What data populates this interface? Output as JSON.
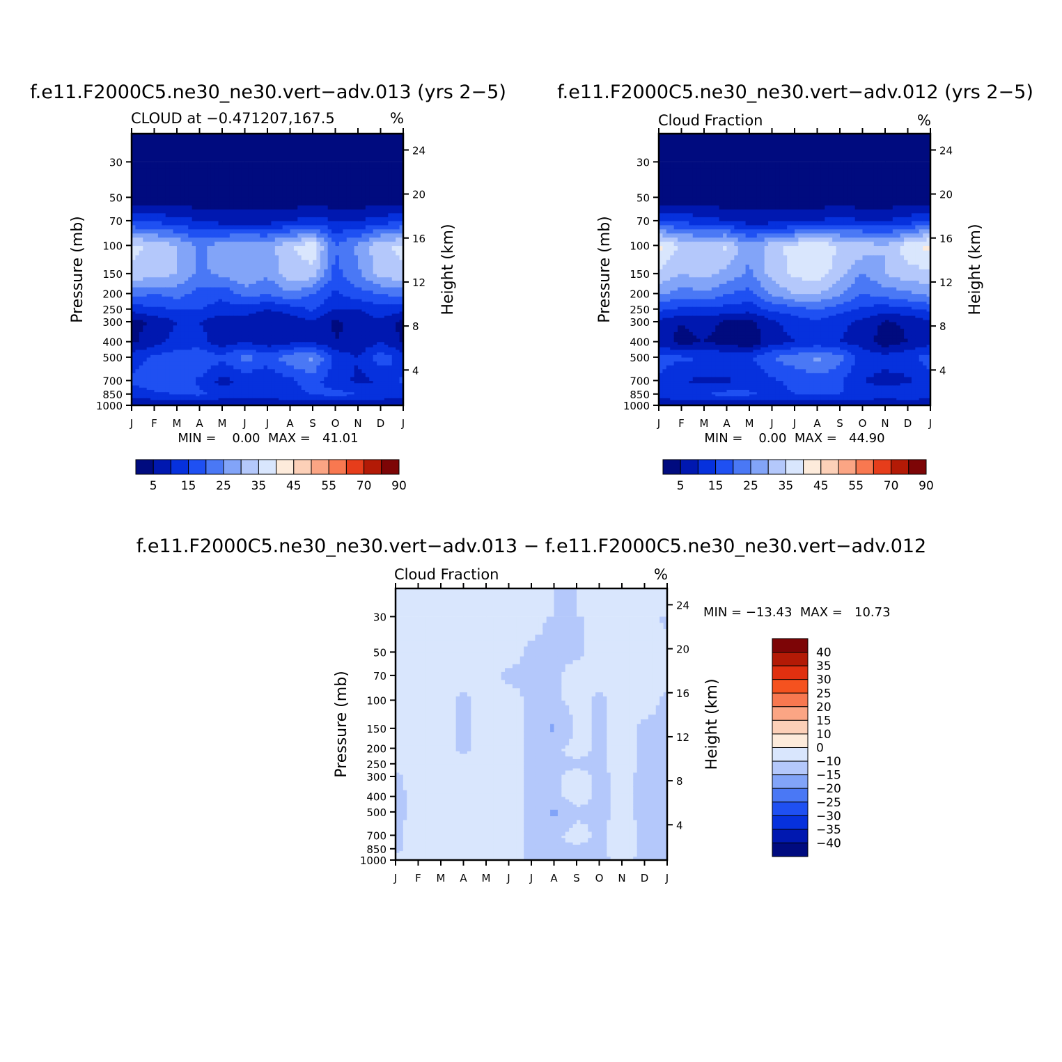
{
  "colors": {
    "seq_palette": [
      "#000b7f",
      "#0018b0",
      "#0631dd",
      "#1f50f2",
      "#4a78f5",
      "#82a4f8",
      "#b4c8fb",
      "#d9e6fd",
      "#fdebdb",
      "#fcd0b8",
      "#fba584",
      "#f87850",
      "#e63d1b",
      "#b31a06",
      "#7d0506"
    ],
    "diff_palette": [
      "#000b7f",
      "#0018b0",
      "#0631dd",
      "#1f50f2",
      "#4a78f5",
      "#82a4f8",
      "#b4c8fb",
      "#d9e6fd",
      "#fdebdb",
      "#fcd0b8",
      "#fba584",
      "#f87850",
      "#f5521f",
      "#e03010",
      "#b31a06",
      "#7d0506"
    ]
  },
  "chart_data": [
    {
      "type": "heatmap",
      "title": "f.e11.F2000C5.ne30_ne30.vert−adv.013 (yrs 2−5)",
      "subtitle_left": "CLOUD at −0.471207,167.5",
      "subtitle_right": "%",
      "ylabel": "Pressure (mb)",
      "y2label": "Height (km)",
      "months": [
        "J",
        "F",
        "M",
        "A",
        "M",
        "J",
        "J",
        "A",
        "S",
        "O",
        "N",
        "D",
        "J"
      ],
      "pressure_ticks": [
        "30",
        "50",
        "70",
        "100",
        "150",
        "200",
        "250",
        "300",
        "400",
        "500",
        "700",
        "850",
        "1000"
      ],
      "height_ticks": [
        "24",
        "20",
        "16",
        "12",
        "8",
        "4"
      ],
      "stats": "MIN =    0.00  MAX =   41.01",
      "colorbar_labels": [
        "5",
        "15",
        "25",
        "35",
        "45",
        "55",
        "70",
        "90"
      ],
      "contour_levels": [
        0,
        5,
        10,
        15,
        20,
        25,
        30,
        35,
        40,
        45,
        50,
        55,
        60,
        70,
        80,
        90
      ],
      "levels_pressure": [
        1000,
        850,
        700,
        500,
        400,
        300,
        250,
        200,
        150,
        100,
        70,
        50,
        30
      ],
      "values": [
        [
          5,
          5,
          5,
          5,
          5,
          5,
          5,
          5,
          5,
          5,
          5,
          5,
          5
        ],
        [
          12,
          14,
          15,
          16,
          13,
          12,
          13,
          14,
          15,
          17,
          15,
          14,
          12
        ],
        [
          16,
          18,
          19,
          14,
          8,
          12,
          10,
          14,
          17,
          12,
          9,
          10,
          16
        ],
        [
          13,
          16,
          18,
          20,
          16,
          22,
          18,
          23,
          26,
          14,
          10,
          18,
          13
        ],
        [
          4,
          8,
          12,
          12,
          7,
          10,
          7,
          9,
          10,
          5,
          6,
          10,
          4
        ],
        [
          3,
          6,
          10,
          10,
          6,
          8,
          5,
          7,
          9,
          4,
          7,
          9,
          3
        ],
        [
          12,
          14,
          15,
          15,
          13,
          12,
          10,
          12,
          16,
          10,
          10,
          13,
          12
        ],
        [
          22,
          20,
          22,
          18,
          16,
          22,
          20,
          24,
          20,
          14,
          18,
          20,
          22
        ],
        [
          34,
          32,
          30,
          24,
          26,
          30,
          26,
          33,
          33,
          18,
          24,
          32,
          34
        ],
        [
          36,
          34,
          30,
          24,
          28,
          30,
          28,
          34,
          39,
          20,
          26,
          34,
          36
        ],
        [
          15,
          14,
          12,
          10,
          8,
          8,
          8,
          10,
          12,
          10,
          10,
          12,
          15
        ],
        [
          1,
          1,
          1,
          1,
          1,
          1,
          1,
          1,
          1,
          1,
          1,
          1,
          1
        ],
        [
          0,
          0,
          0,
          0,
          0,
          0,
          0,
          0,
          0,
          0,
          0,
          0,
          0
        ]
      ]
    },
    {
      "type": "heatmap",
      "title": "f.e11.F2000C5.ne30_ne30.vert−adv.012 (yrs 2−5)",
      "subtitle_left": "Cloud Fraction",
      "subtitle_right": "%",
      "ylabel": "Pressure (mb)",
      "y2label": "Height (km)",
      "months": [
        "J",
        "F",
        "M",
        "A",
        "M",
        "J",
        "J",
        "A",
        "S",
        "O",
        "N",
        "D",
        "J"
      ],
      "pressure_ticks": [
        "30",
        "50",
        "70",
        "100",
        "150",
        "200",
        "250",
        "300",
        "400",
        "500",
        "700",
        "850",
        "1000"
      ],
      "height_ticks": [
        "24",
        "20",
        "16",
        "12",
        "8",
        "4"
      ],
      "stats": "MIN =    0.00  MAX =   44.90",
      "colorbar_labels": [
        "5",
        "15",
        "25",
        "35",
        "45",
        "55",
        "70",
        "90"
      ],
      "contour_levels": [
        0,
        5,
        10,
        15,
        20,
        25,
        30,
        35,
        40,
        45,
        50,
        55,
        60,
        70,
        80,
        90
      ],
      "levels_pressure": [
        1000,
        850,
        700,
        500,
        400,
        300,
        250,
        200,
        150,
        100,
        70,
        50,
        30
      ],
      "values": [
        [
          5,
          5,
          5,
          5,
          5,
          5,
          5,
          5,
          5,
          5,
          5,
          5,
          5
        ],
        [
          13,
          14,
          15,
          17,
          16,
          14,
          15,
          15,
          15,
          14,
          13,
          14,
          13
        ],
        [
          14,
          10,
          9,
          9,
          12,
          14,
          16,
          18,
          16,
          10,
          8,
          9,
          14
        ],
        [
          17,
          16,
          15,
          14,
          14,
          20,
          23,
          26,
          22,
          13,
          12,
          14,
          17
        ],
        [
          8,
          3,
          5,
          3,
          1,
          8,
          10,
          12,
          10,
          8,
          2,
          5,
          8
        ],
        [
          9,
          5,
          7,
          4,
          3,
          9,
          12,
          14,
          11,
          9,
          4,
          6,
          9
        ],
        [
          16,
          14,
          14,
          13,
          12,
          16,
          18,
          20,
          17,
          14,
          12,
          14,
          16
        ],
        [
          26,
          22,
          24,
          20,
          18,
          26,
          30,
          30,
          26,
          20,
          22,
          24,
          26
        ],
        [
          34,
          30,
          32,
          28,
          24,
          32,
          36,
          38,
          32,
          24,
          30,
          33,
          34
        ],
        [
          42,
          34,
          33,
          36,
          26,
          33,
          37,
          40,
          34,
          34,
          30,
          38,
          42
        ],
        [
          16,
          14,
          12,
          10,
          8,
          8,
          8,
          10,
          12,
          10,
          10,
          12,
          16
        ],
        [
          1,
          1,
          1,
          1,
          1,
          1,
          1,
          1,
          1,
          1,
          1,
          1,
          1
        ],
        [
          0,
          0,
          0,
          0,
          0,
          0,
          0,
          0,
          0,
          0,
          0,
          0,
          0
        ]
      ]
    },
    {
      "type": "heatmap",
      "title": "f.e11.F2000C5.ne30_ne30.vert−adv.013 − f.e11.F2000C5.ne30_ne30.vert−adv.012",
      "subtitle_left": "Cloud Fraction",
      "subtitle_right": "%",
      "ylabel": "Pressure (mb)",
      "y2label": "Height (km)",
      "months": [
        "J",
        "F",
        "M",
        "A",
        "M",
        "J",
        "J",
        "A",
        "S",
        "O",
        "N",
        "D",
        "J"
      ],
      "pressure_ticks": [
        "30",
        "50",
        "70",
        "100",
        "150",
        "200",
        "250",
        "300",
        "400",
        "500",
        "700",
        "850",
        "1000"
      ],
      "height_ticks": [
        "24",
        "20",
        "16",
        "12",
        "8",
        "4"
      ],
      "stats": "MIN = −13.43  MAX =   10.73",
      "colorbar_labels": [
        "40",
        "35",
        "30",
        "25",
        "20",
        "15",
        "10",
        "0",
        "−10",
        "−15",
        "−20",
        "−25",
        "−30",
        "−35",
        "−40"
      ],
      "contour_levels": [
        -40,
        -35,
        -30,
        -25,
        -20,
        -15,
        -10,
        0,
        10,
        15,
        20,
        25,
        30,
        35,
        40
      ],
      "levels_pressure": [
        1000,
        850,
        700,
        500,
        400,
        300,
        250,
        200,
        150,
        100,
        70,
        50,
        30
      ],
      "values": [
        [
          2,
          2,
          2,
          2,
          2,
          2,
          -1,
          -1,
          -1,
          -1,
          1,
          -1,
          -1
        ],
        [
          -1,
          2,
          2,
          2,
          2,
          2,
          -1,
          -1,
          -1,
          -1,
          2,
          -1,
          -1
        ],
        [
          -1,
          2,
          2,
          2,
          2,
          2,
          -1,
          -1,
          2,
          -1,
          2,
          -1,
          -1
        ],
        [
          -1,
          1,
          2,
          2,
          2,
          2,
          -1,
          -12,
          -1,
          -1,
          1,
          -1,
          -1
        ],
        [
          -1,
          1,
          2,
          2,
          2,
          2,
          -1,
          -1,
          2,
          -1,
          1,
          -1,
          -1
        ],
        [
          -1,
          2,
          2,
          2,
          2,
          2,
          -1,
          -1,
          2,
          -1,
          1,
          -1,
          -1
        ],
        [
          2,
          2,
          2,
          2,
          2,
          2,
          -1,
          -1,
          -1,
          -1,
          2,
          -1,
          -1
        ],
        [
          2,
          2,
          2,
          -1,
          2,
          2,
          -1,
          -1,
          2,
          -1,
          2,
          -1,
          -1
        ],
        [
          2,
          2,
          2,
          -1,
          3,
          2,
          -1,
          -12,
          2,
          -1,
          2,
          -1,
          -1
        ],
        [
          2,
          2,
          2,
          -1,
          2,
          2,
          -1,
          -1,
          2,
          -1,
          2,
          2,
          -1
        ],
        [
          2,
          2,
          2,
          2,
          2,
          -1,
          -1,
          -1,
          2,
          2,
          2,
          2,
          2
        ],
        [
          2,
          2,
          2,
          2,
          2,
          2,
          -1,
          -1,
          -1,
          2,
          2,
          2,
          2
        ],
        [
          2,
          2,
          2,
          2,
          2,
          2,
          2,
          -1,
          -1,
          2,
          2,
          2,
          -1
        ]
      ]
    }
  ]
}
